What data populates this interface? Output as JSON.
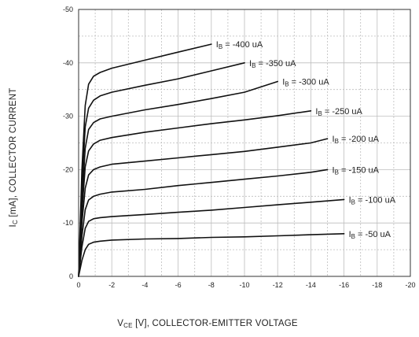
{
  "chart_data": {
    "type": "line",
    "xlabel_main": "V",
    "xlabel_sub": "CE",
    "xlabel_rest": " [V], COLLECTOR-EMITTER VOLTAGE",
    "ylabel_main": "I",
    "ylabel_sub": "C",
    "ylabel_rest": " [mA], COLLECTOR CURRENT",
    "xlim": [
      0,
      -20
    ],
    "ylim": [
      0,
      -50
    ],
    "x_ticks": [
      "0",
      "-2",
      "-4",
      "-6",
      "-8",
      "-10",
      "-12",
      "-14",
      "-16",
      "-18",
      "-20"
    ],
    "y_ticks": [
      "0",
      "-10",
      "-20",
      "-30",
      "-40",
      "-50"
    ],
    "grid": true,
    "series": [
      {
        "label_main": "I",
        "label_sub": "B",
        "label_rest": " = -400 uA",
        "x": [
          0,
          -0.2,
          -0.4,
          -0.6,
          -0.9,
          -1.3,
          -2,
          -4,
          -6,
          -8
        ],
        "y": [
          0,
          -20,
          -32,
          -36,
          -37.5,
          -38.2,
          -39,
          -40.5,
          -42,
          -43.5
        ]
      },
      {
        "label_main": "I",
        "label_sub": "B",
        "label_rest": " = -350 uA",
        "x": [
          0,
          -0.2,
          -0.4,
          -0.6,
          -0.9,
          -1.3,
          -2,
          -4,
          -6,
          -8,
          -10
        ],
        "y": [
          0,
          -17,
          -28,
          -31.5,
          -33,
          -33.8,
          -34.5,
          -35.8,
          -37,
          -38.5,
          -40
        ]
      },
      {
        "label_main": "I",
        "label_sub": "B",
        "label_rest": " = -300 uA",
        "x": [
          0,
          -0.2,
          -0.4,
          -0.6,
          -0.9,
          -1.3,
          -2,
          -4,
          -6,
          -8,
          -10,
          -12
        ],
        "y": [
          0,
          -14,
          -24,
          -27.5,
          -28.8,
          -29.5,
          -30,
          -31.2,
          -32.2,
          -33.3,
          -34.5,
          -36.5
        ]
      },
      {
        "label_main": "I",
        "label_sub": "B",
        "label_rest": " = -250 uA",
        "x": [
          0,
          -0.2,
          -0.4,
          -0.6,
          -0.9,
          -1.3,
          -2,
          -4,
          -6,
          -8,
          -10,
          -12,
          -14
        ],
        "y": [
          0,
          -12,
          -20.5,
          -23.5,
          -24.8,
          -25.5,
          -26,
          -27,
          -27.8,
          -28.6,
          -29.3,
          -30.1,
          -31
        ]
      },
      {
        "label_main": "I",
        "label_sub": "B",
        "label_rest": " = -200 uA",
        "x": [
          0,
          -0.2,
          -0.4,
          -0.6,
          -0.9,
          -1.3,
          -2,
          -4,
          -6,
          -8,
          -10,
          -12,
          -14,
          -15
        ],
        "y": [
          0,
          -10,
          -16.5,
          -19,
          -20,
          -20.5,
          -21,
          -21.6,
          -22.2,
          -22.8,
          -23.4,
          -24.2,
          -25,
          -25.8
        ]
      },
      {
        "label_main": "I",
        "label_sub": "B",
        "label_rest": " = -150 uA",
        "x": [
          0,
          -0.2,
          -0.4,
          -0.6,
          -0.9,
          -1.3,
          -2,
          -4,
          -6,
          -8,
          -10,
          -12,
          -14,
          -15
        ],
        "y": [
          0,
          -7.5,
          -12.5,
          -14.3,
          -15,
          -15.4,
          -15.8,
          -16.3,
          -17,
          -17.6,
          -18.2,
          -18.8,
          -19.5,
          -20
        ]
      },
      {
        "label_main": "I",
        "label_sub": "B",
        "label_rest": " = -100 uA",
        "x": [
          0,
          -0.2,
          -0.4,
          -0.6,
          -0.9,
          -1.3,
          -2,
          -4,
          -6,
          -8,
          -10,
          -12,
          -14,
          -16
        ],
        "y": [
          0,
          -5.5,
          -9,
          -10.3,
          -10.8,
          -11,
          -11.2,
          -11.6,
          -12,
          -12.4,
          -12.9,
          -13.4,
          -13.9,
          -14.4
        ]
      },
      {
        "label_main": "I",
        "label_sub": "B",
        "label_rest": " = -50 uA",
        "x": [
          0,
          -0.2,
          -0.4,
          -0.6,
          -0.9,
          -1.3,
          -2,
          -4,
          -6,
          -8,
          -10,
          -12,
          -14,
          -16
        ],
        "y": [
          0,
          -3,
          -5,
          -6,
          -6.4,
          -6.6,
          -6.8,
          -7,
          -7.1,
          -7.3,
          -7.4,
          -7.6,
          -7.8,
          -8
        ]
      }
    ]
  }
}
